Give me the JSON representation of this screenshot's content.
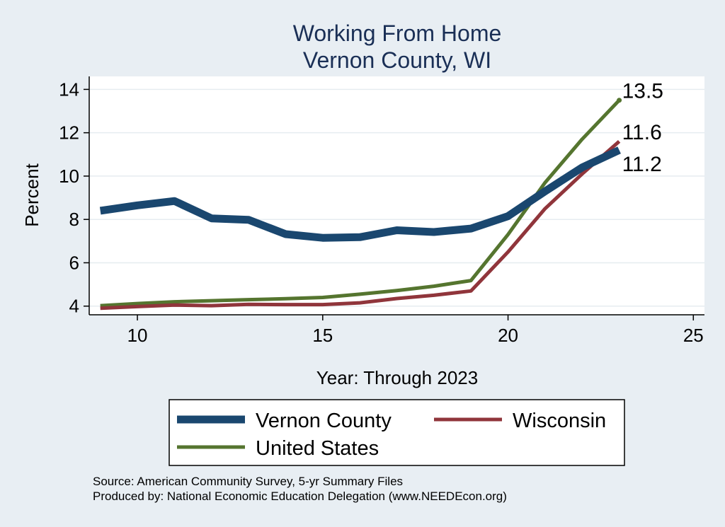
{
  "chart_data": {
    "type": "line",
    "title": [
      "Working From Home",
      "Vernon County, WI"
    ],
    "xlabel": "Year: Through 2023",
    "ylabel": "Percent",
    "xlim": [
      8.7,
      25.3
    ],
    "ylim": [
      3.6,
      14.6
    ],
    "xticks": [
      10,
      15,
      20,
      25
    ],
    "yticks": [
      4,
      6,
      8,
      10,
      12,
      14
    ],
    "grid": true,
    "legend_position": "bottom",
    "series": [
      {
        "name": "Vernon County",
        "color": "#1a476f",
        "width": 11,
        "x": [
          9,
          10,
          11,
          12,
          13,
          14,
          15,
          16,
          17,
          18,
          19,
          20,
          21,
          22,
          23
        ],
        "y": [
          8.4,
          8.65,
          8.85,
          8.05,
          7.98,
          7.32,
          7.15,
          7.18,
          7.5,
          7.42,
          7.58,
          8.15,
          9.3,
          10.4,
          11.2
        ],
        "end_label": "11.2"
      },
      {
        "name": "Wisconsin",
        "color": "#90353b",
        "width": 5,
        "x": [
          9,
          10,
          11,
          12,
          13,
          14,
          15,
          16,
          17,
          18,
          19,
          20,
          21,
          22,
          23
        ],
        "y": [
          3.9,
          3.98,
          4.05,
          4.02,
          4.08,
          4.07,
          4.07,
          4.15,
          4.35,
          4.5,
          4.7,
          6.5,
          8.5,
          10.1,
          11.6
        ],
        "end_label": "11.6"
      },
      {
        "name": "United States",
        "color": "#55752f",
        "width": 5,
        "x": [
          9,
          10,
          11,
          12,
          13,
          14,
          15,
          16,
          17,
          18,
          19,
          20,
          21,
          22,
          23
        ],
        "y": [
          4.02,
          4.12,
          4.2,
          4.25,
          4.3,
          4.34,
          4.4,
          4.55,
          4.72,
          4.92,
          5.18,
          7.3,
          9.7,
          11.7,
          13.5
        ],
        "end_label": "13.5"
      }
    ],
    "notes": [
      "Source: American Community Survey, 5-yr Summary Files",
      "Produced by: National Economic Education Delegation (www.NEEDEcon.org)"
    ]
  }
}
